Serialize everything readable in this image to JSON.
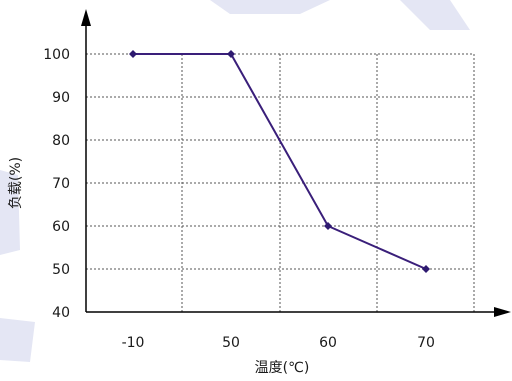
{
  "chart_data": {
    "type": "line",
    "title": "",
    "xlabel": "温度(℃)",
    "ylabel": "负载(%)",
    "categories": [
      "-10",
      "50",
      "60",
      "70"
    ],
    "values": [
      100,
      100,
      60,
      50
    ],
    "ylim": [
      40,
      100
    ],
    "yticks": [
      40,
      50,
      60,
      70,
      80,
      90,
      100
    ],
    "grid": true,
    "line_color": "#3a1f7a",
    "marker_color": "#2e1a70",
    "grid_color": "#555555"
  }
}
